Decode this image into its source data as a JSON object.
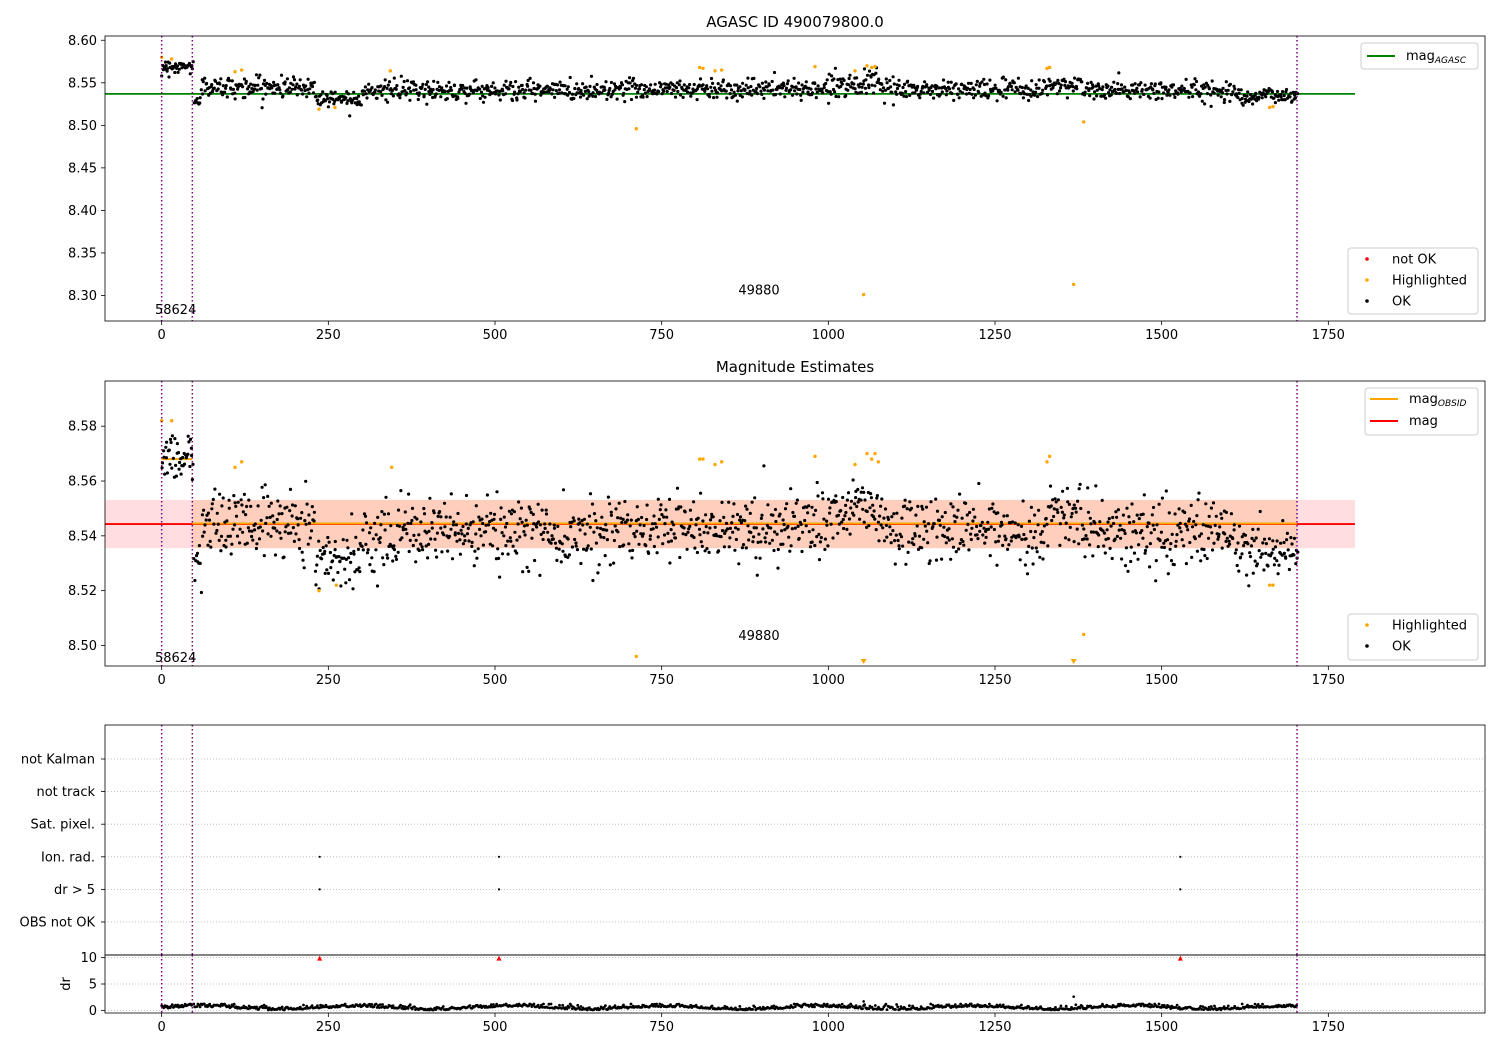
{
  "chart_data": [
    {
      "type": "scatter",
      "title": "AGASC ID 490079800.0",
      "xlim": [
        -85,
        1985
      ],
      "ylim": [
        8.27,
        8.605
      ],
      "x_ticks": [
        0,
        250,
        500,
        750,
        1000,
        1250,
        1500,
        1750
      ],
      "y_ticks": [
        8.3,
        8.35,
        8.4,
        8.45,
        8.5,
        8.55,
        8.6
      ],
      "grid": false,
      "mag_agasc": 8.537,
      "line_x_end": 1790,
      "vlines": [
        0,
        46,
        1703
      ],
      "annotations": [
        {
          "text": "58624",
          "x": 0,
          "y": 8.283
        },
        {
          "text": "49880",
          "x": 875,
          "y": 8.306
        }
      ],
      "legends": [
        {
          "position": "top-right",
          "items": [
            {
              "label": "mag",
              "sub": "AGASC",
              "color": "#008000"
            }
          ]
        },
        {
          "position": "bottom-right",
          "items": [
            {
              "label": "not OK",
              "color": "#ff0000"
            },
            {
              "label": "Highlighted",
              "color": "#ffa500"
            },
            {
              "label": "OK",
              "color": "#000000"
            }
          ]
        }
      ],
      "highlighted_points": [
        [
          0,
          8.58
        ],
        [
          15,
          8.578
        ],
        [
          110,
          8.563
        ],
        [
          120,
          8.565
        ],
        [
          236,
          8.519
        ],
        [
          260,
          8.521
        ],
        [
          343,
          8.564
        ],
        [
          712,
          8.496
        ],
        [
          807,
          8.568
        ],
        [
          812,
          8.567
        ],
        [
          830,
          8.564
        ],
        [
          840,
          8.565
        ],
        [
          980,
          8.569
        ],
        [
          1040,
          8.564
        ],
        [
          1053,
          8.301
        ],
        [
          1058,
          8.57
        ],
        [
          1065,
          8.568
        ],
        [
          1070,
          8.569
        ],
        [
          1328,
          8.567
        ],
        [
          1332,
          8.568
        ],
        [
          1368,
          8.313
        ],
        [
          1383,
          8.504
        ],
        [
          1662,
          8.521
        ],
        [
          1667,
          8.522
        ]
      ],
      "ok_segments": [
        {
          "x": [
            0,
            48
          ],
          "mean": 8.569,
          "sd": 0.004,
          "n": 45
        },
        {
          "x": [
            48,
            60
          ],
          "mean": 8.53,
          "sd": 0.004,
          "n": 10
        },
        {
          "x": [
            60,
            230
          ],
          "mean": 8.545,
          "sd": 0.006,
          "n": 140
        },
        {
          "x": [
            230,
            300
          ],
          "mean": 8.532,
          "sd": 0.005,
          "n": 60
        },
        {
          "x": [
            300,
            660
          ],
          "mean": 8.541,
          "sd": 0.006,
          "n": 300
        },
        {
          "x": [
            660,
            1000
          ],
          "mean": 8.543,
          "sd": 0.006,
          "n": 280
        },
        {
          "x": [
            1000,
            1080
          ],
          "mean": 8.549,
          "sd": 0.006,
          "n": 70
        },
        {
          "x": [
            1080,
            1330
          ],
          "mean": 8.542,
          "sd": 0.006,
          "n": 200
        },
        {
          "x": [
            1330,
            1380
          ],
          "mean": 8.548,
          "sd": 0.006,
          "n": 40
        },
        {
          "x": [
            1380,
            1610
          ],
          "mean": 8.541,
          "sd": 0.006,
          "n": 190
        },
        {
          "x": [
            1610,
            1705
          ],
          "mean": 8.535,
          "sd": 0.005,
          "n": 80
        }
      ]
    },
    {
      "type": "scatter",
      "title": "Magnitude Estimates",
      "xlim": [
        -85,
        1985
      ],
      "ylim": [
        8.4925,
        8.5965
      ],
      "x_ticks": [
        0,
        250,
        500,
        750,
        1000,
        1250,
        1500,
        1750
      ],
      "y_ticks": [
        8.5,
        8.52,
        8.54,
        8.56,
        8.58
      ],
      "grid": false,
      "mag": 8.5443,
      "mag_band": [
        8.5355,
        8.5531
      ],
      "mag_obsid_lines": [
        {
          "x": [
            0,
            46
          ],
          "y": 8.568
        },
        {
          "x": [
            46,
            1703
          ],
          "y": 8.5445
        }
      ],
      "line_x_end": 1790,
      "vlines": [
        0,
        46,
        1703
      ],
      "annotations": [
        {
          "text": "58624",
          "x": 0,
          "y": 8.4955
        },
        {
          "text": "49880",
          "x": 875,
          "y": 8.5035
        }
      ],
      "legends": [
        {
          "position": "top-right",
          "items": [
            {
              "label": "mag",
              "sub": "OBSID",
              "color": "#ffa500"
            },
            {
              "label": "mag",
              "color": "#ff0000"
            }
          ]
        },
        {
          "position": "bottom-right",
          "items": [
            {
              "label": "Highlighted",
              "color": "#ffa500"
            },
            {
              "label": "OK",
              "color": "#000000"
            }
          ]
        }
      ],
      "highlighted_points": [
        [
          0,
          8.582
        ],
        [
          15,
          8.582
        ],
        [
          110,
          8.565
        ],
        [
          120,
          8.567
        ],
        [
          236,
          8.52
        ],
        [
          262,
          8.522
        ],
        [
          345,
          8.565
        ],
        [
          712,
          8.496
        ],
        [
          807,
          8.568
        ],
        [
          812,
          8.568
        ],
        [
          830,
          8.566
        ],
        [
          840,
          8.567
        ],
        [
          980,
          8.569
        ],
        [
          1040,
          8.566
        ],
        [
          1058,
          8.57
        ],
        [
          1065,
          8.568
        ],
        [
          1070,
          8.57
        ],
        [
          1075,
          8.567
        ],
        [
          1328,
          8.567
        ],
        [
          1332,
          8.569
        ],
        [
          1383,
          8.504
        ],
        [
          1662,
          8.522
        ],
        [
          1667,
          8.522
        ]
      ],
      "clipped_markers_x": [
        1053,
        1368
      ],
      "ok_segments": [
        {
          "x": [
            0,
            48
          ],
          "mean": 8.569,
          "sd": 0.004,
          "n": 45
        },
        {
          "x": [
            48,
            60
          ],
          "mean": 8.53,
          "sd": 0.004,
          "n": 10
        },
        {
          "x": [
            60,
            230
          ],
          "mean": 8.545,
          "sd": 0.006,
          "n": 140
        },
        {
          "x": [
            230,
            300
          ],
          "mean": 8.532,
          "sd": 0.005,
          "n": 60
        },
        {
          "x": [
            300,
            660
          ],
          "mean": 8.541,
          "sd": 0.006,
          "n": 300
        },
        {
          "x": [
            660,
            1000
          ],
          "mean": 8.543,
          "sd": 0.006,
          "n": 280
        },
        {
          "x": [
            1000,
            1080
          ],
          "mean": 8.549,
          "sd": 0.006,
          "n": 70
        },
        {
          "x": [
            1080,
            1330
          ],
          "mean": 8.542,
          "sd": 0.006,
          "n": 200
        },
        {
          "x": [
            1330,
            1380
          ],
          "mean": 8.548,
          "sd": 0.006,
          "n": 40
        },
        {
          "x": [
            1380,
            1610
          ],
          "mean": 8.541,
          "sd": 0.006,
          "n": 190
        },
        {
          "x": [
            1610,
            1705
          ],
          "mean": 8.535,
          "sd": 0.005,
          "n": 80
        }
      ]
    },
    {
      "type": "scatter",
      "title": "",
      "xlim": [
        -85,
        1985
      ],
      "x_ticks": [
        0,
        250,
        500,
        750,
        1000,
        1250,
        1500,
        1750
      ],
      "vlines": [
        0,
        46,
        1703
      ],
      "flags": [
        "not Kalman",
        "not track",
        "Sat. pixel.",
        "Ion. rad.",
        "dr > 5",
        "OBS not OK"
      ],
      "flag_points": [
        {
          "flag": "Ion. rad.",
          "x": [
            237,
            506,
            1528
          ]
        },
        {
          "flag": "dr > 5",
          "x": [
            237,
            506,
            1528
          ]
        }
      ],
      "dr": {
        "ylabel": "dr",
        "ylim": [
          -0.5,
          10.5
        ],
        "y_ticks": [
          0,
          5,
          10
        ],
        "clipped_x": [
          237,
          506,
          1528
        ],
        "outliers": [
          [
            1368,
            2.6
          ],
          [
            1053,
            1.7
          ]
        ],
        "typical": [
          0,
          1.2
        ]
      }
    }
  ]
}
